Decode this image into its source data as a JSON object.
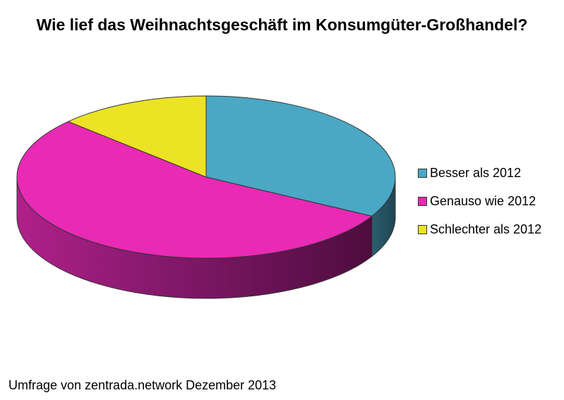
{
  "chart_data": {
    "type": "pie",
    "title": "Wie lief das Weihnachtsgeschäft im Konsumgüter-Großhandel?",
    "categories": [
      "Besser als 2012",
      "Genauso wie 2012",
      "Schlechter als 2012"
    ],
    "values": [
      33,
      54,
      13
    ],
    "colors": [
      "#4aa8c4",
      "#e82ab4",
      "#ebe324"
    ],
    "legend_position": "right",
    "style": "3d"
  },
  "footnote": "Umfrage von zentrada.network Dezember 2013"
}
